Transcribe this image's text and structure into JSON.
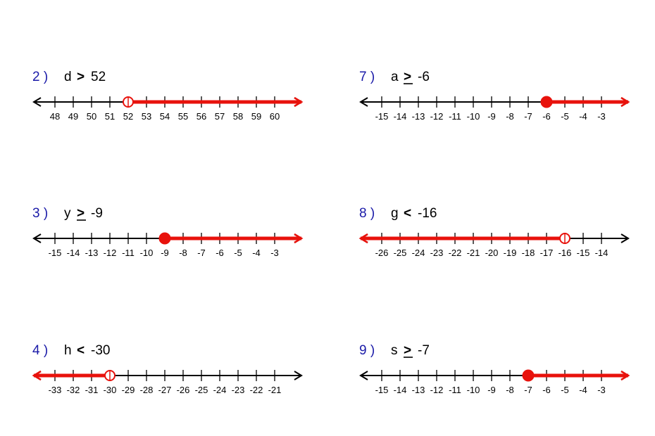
{
  "colors": {
    "number": "#1a1aa8",
    "axis": "#000000",
    "graph": "#e8120c"
  },
  "problems": [
    {
      "number": "2 )",
      "variable": "d",
      "symbol": ">",
      "underline": false,
      "value": "52",
      "ticks": [
        "48",
        "49",
        "50",
        "51",
        "52",
        "53",
        "54",
        "55",
        "56",
        "57",
        "58",
        "59",
        "60"
      ],
      "point": 52,
      "closed": false,
      "direction": "right"
    },
    {
      "number": "7 )",
      "variable": "a",
      "symbol": ">",
      "underline": true,
      "value": "-6",
      "ticks": [
        "-15",
        "-14",
        "-13",
        "-12",
        "-11",
        "-10",
        "-9",
        "-8",
        "-7",
        "-6",
        "-5",
        "-4",
        "-3"
      ],
      "point": -6,
      "closed": true,
      "direction": "right"
    },
    {
      "number": "3 )",
      "variable": "y",
      "symbol": ">",
      "underline": true,
      "value": "-9",
      "ticks": [
        "-15",
        "-14",
        "-13",
        "-12",
        "-11",
        "-10",
        "-9",
        "-8",
        "-7",
        "-6",
        "-5",
        "-4",
        "-3"
      ],
      "point": -9,
      "closed": true,
      "direction": "right"
    },
    {
      "number": "8 )",
      "variable": "g",
      "symbol": "<",
      "underline": false,
      "value": "-16",
      "ticks": [
        "-26",
        "-25",
        "-24",
        "-23",
        "-22",
        "-21",
        "-20",
        "-19",
        "-18",
        "-17",
        "-16",
        "-15",
        "-14"
      ],
      "point": -16,
      "closed": false,
      "direction": "left"
    },
    {
      "number": "4 )",
      "variable": "h",
      "symbol": "<",
      "underline": false,
      "value": "-30",
      "ticks": [
        "-33",
        "-32",
        "-31",
        "-30",
        "-29",
        "-28",
        "-27",
        "-26",
        "-25",
        "-24",
        "-23",
        "-22",
        "-21"
      ],
      "point": -30,
      "closed": false,
      "direction": "left"
    },
    {
      "number": "9 )",
      "variable": "s",
      "symbol": ">",
      "underline": true,
      "value": "-7",
      "ticks": [
        "-15",
        "-14",
        "-13",
        "-12",
        "-11",
        "-10",
        "-9",
        "-8",
        "-7",
        "-6",
        "-5",
        "-4",
        "-3"
      ],
      "point": -7,
      "closed": true,
      "direction": "right"
    }
  ]
}
